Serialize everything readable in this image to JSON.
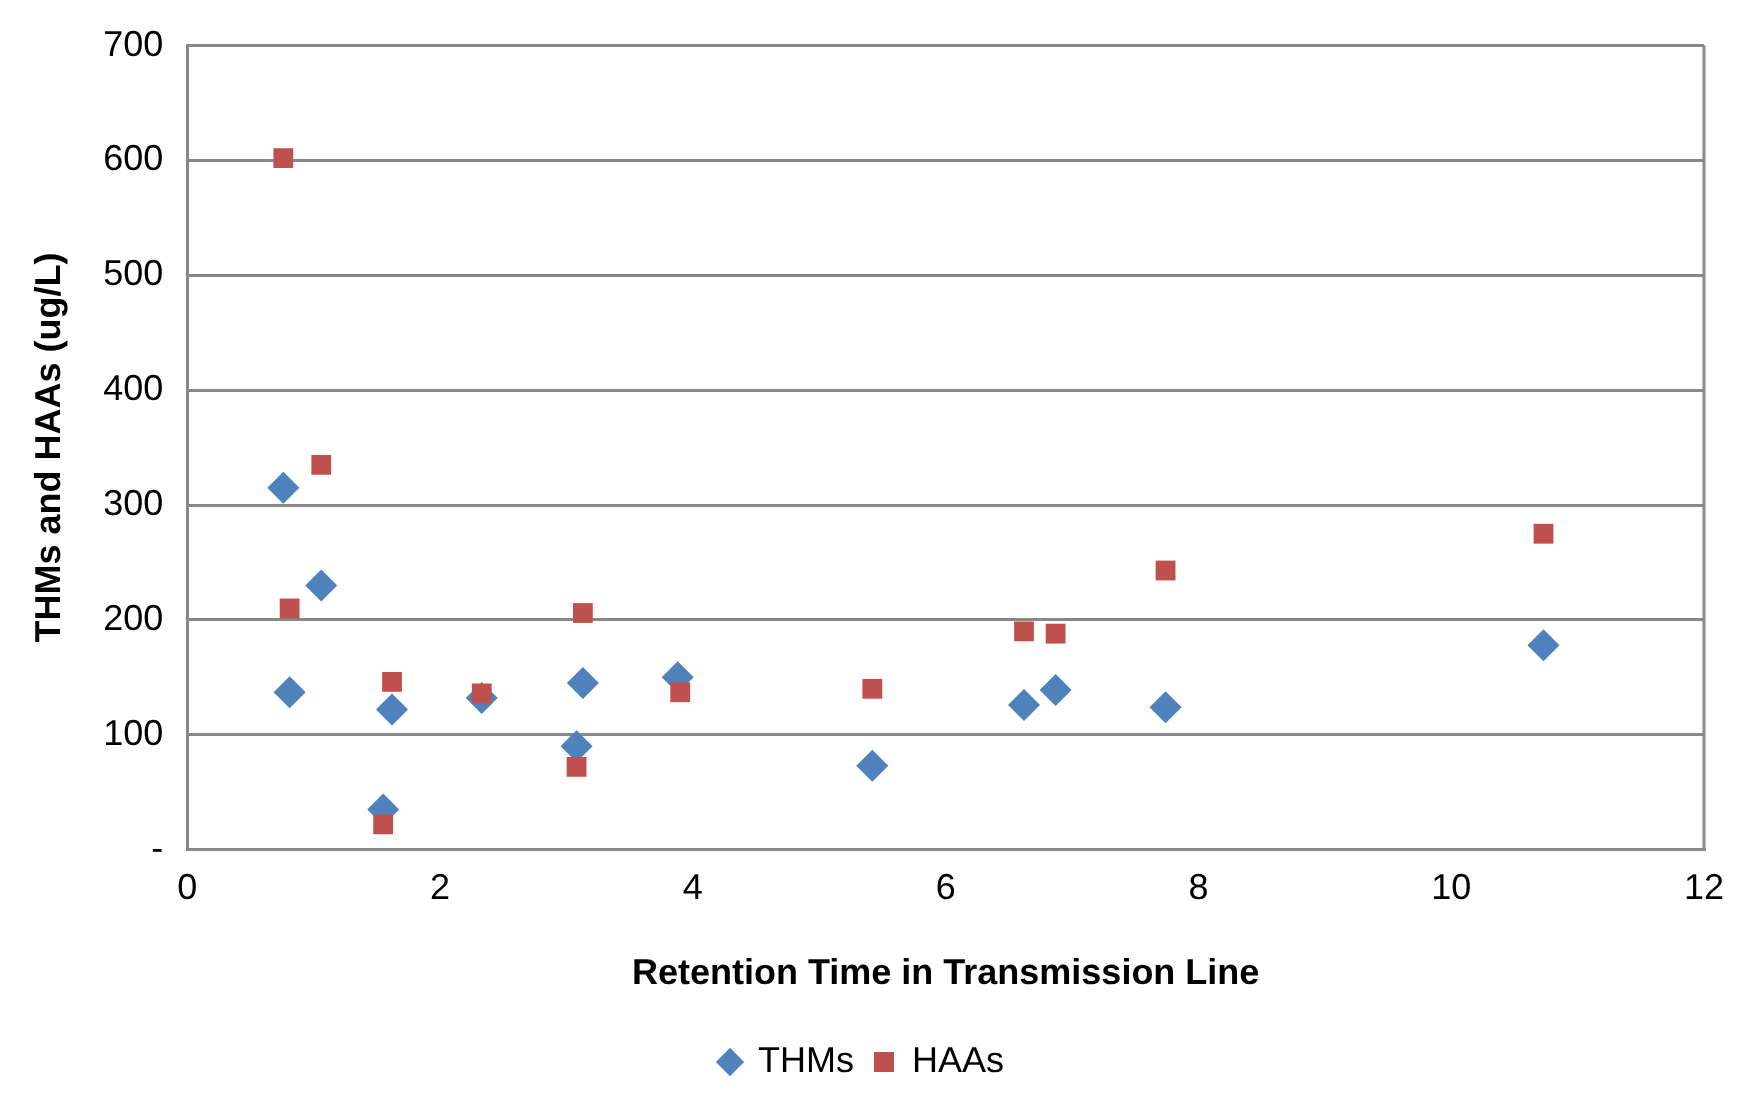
{
  "chart_data": {
    "type": "scatter",
    "xlabel": "Retention Time in Transmission Line",
    "ylabel": "THMs and HAAs (ug/L)",
    "xlim": [
      0,
      12
    ],
    "xticks": [
      0,
      2,
      4,
      6,
      8,
      10,
      12
    ],
    "ylim": [
      0,
      700
    ],
    "yticks": [
      {
        "value": 0,
        "label": "-"
      },
      100,
      200,
      300,
      400,
      500,
      600,
      700
    ],
    "grid": "y",
    "legend": "bottom",
    "series": [
      {
        "name": "THMs",
        "color": "#4f81bd",
        "marker": "diamond",
        "x": [
          0.76,
          0.81,
          1.06,
          1.55,
          1.62,
          2.33,
          3.08,
          3.13,
          3.88,
          5.42,
          6.62,
          6.87,
          7.74,
          10.73
        ],
        "values": [
          315,
          137,
          230,
          35,
          122,
          132,
          90,
          145,
          150,
          73,
          126,
          139,
          124,
          178
        ]
      },
      {
        "name": "HAAs",
        "color": "#c0504d",
        "marker": "square",
        "x": [
          0.76,
          0.81,
          1.06,
          1.55,
          1.62,
          2.33,
          3.08,
          3.13,
          3.9,
          5.42,
          6.62,
          6.87,
          7.74,
          10.73
        ],
        "values": [
          602,
          210,
          335,
          22,
          146,
          136,
          72,
          206,
          137,
          140,
          190,
          188,
          243,
          275
        ]
      }
    ]
  }
}
